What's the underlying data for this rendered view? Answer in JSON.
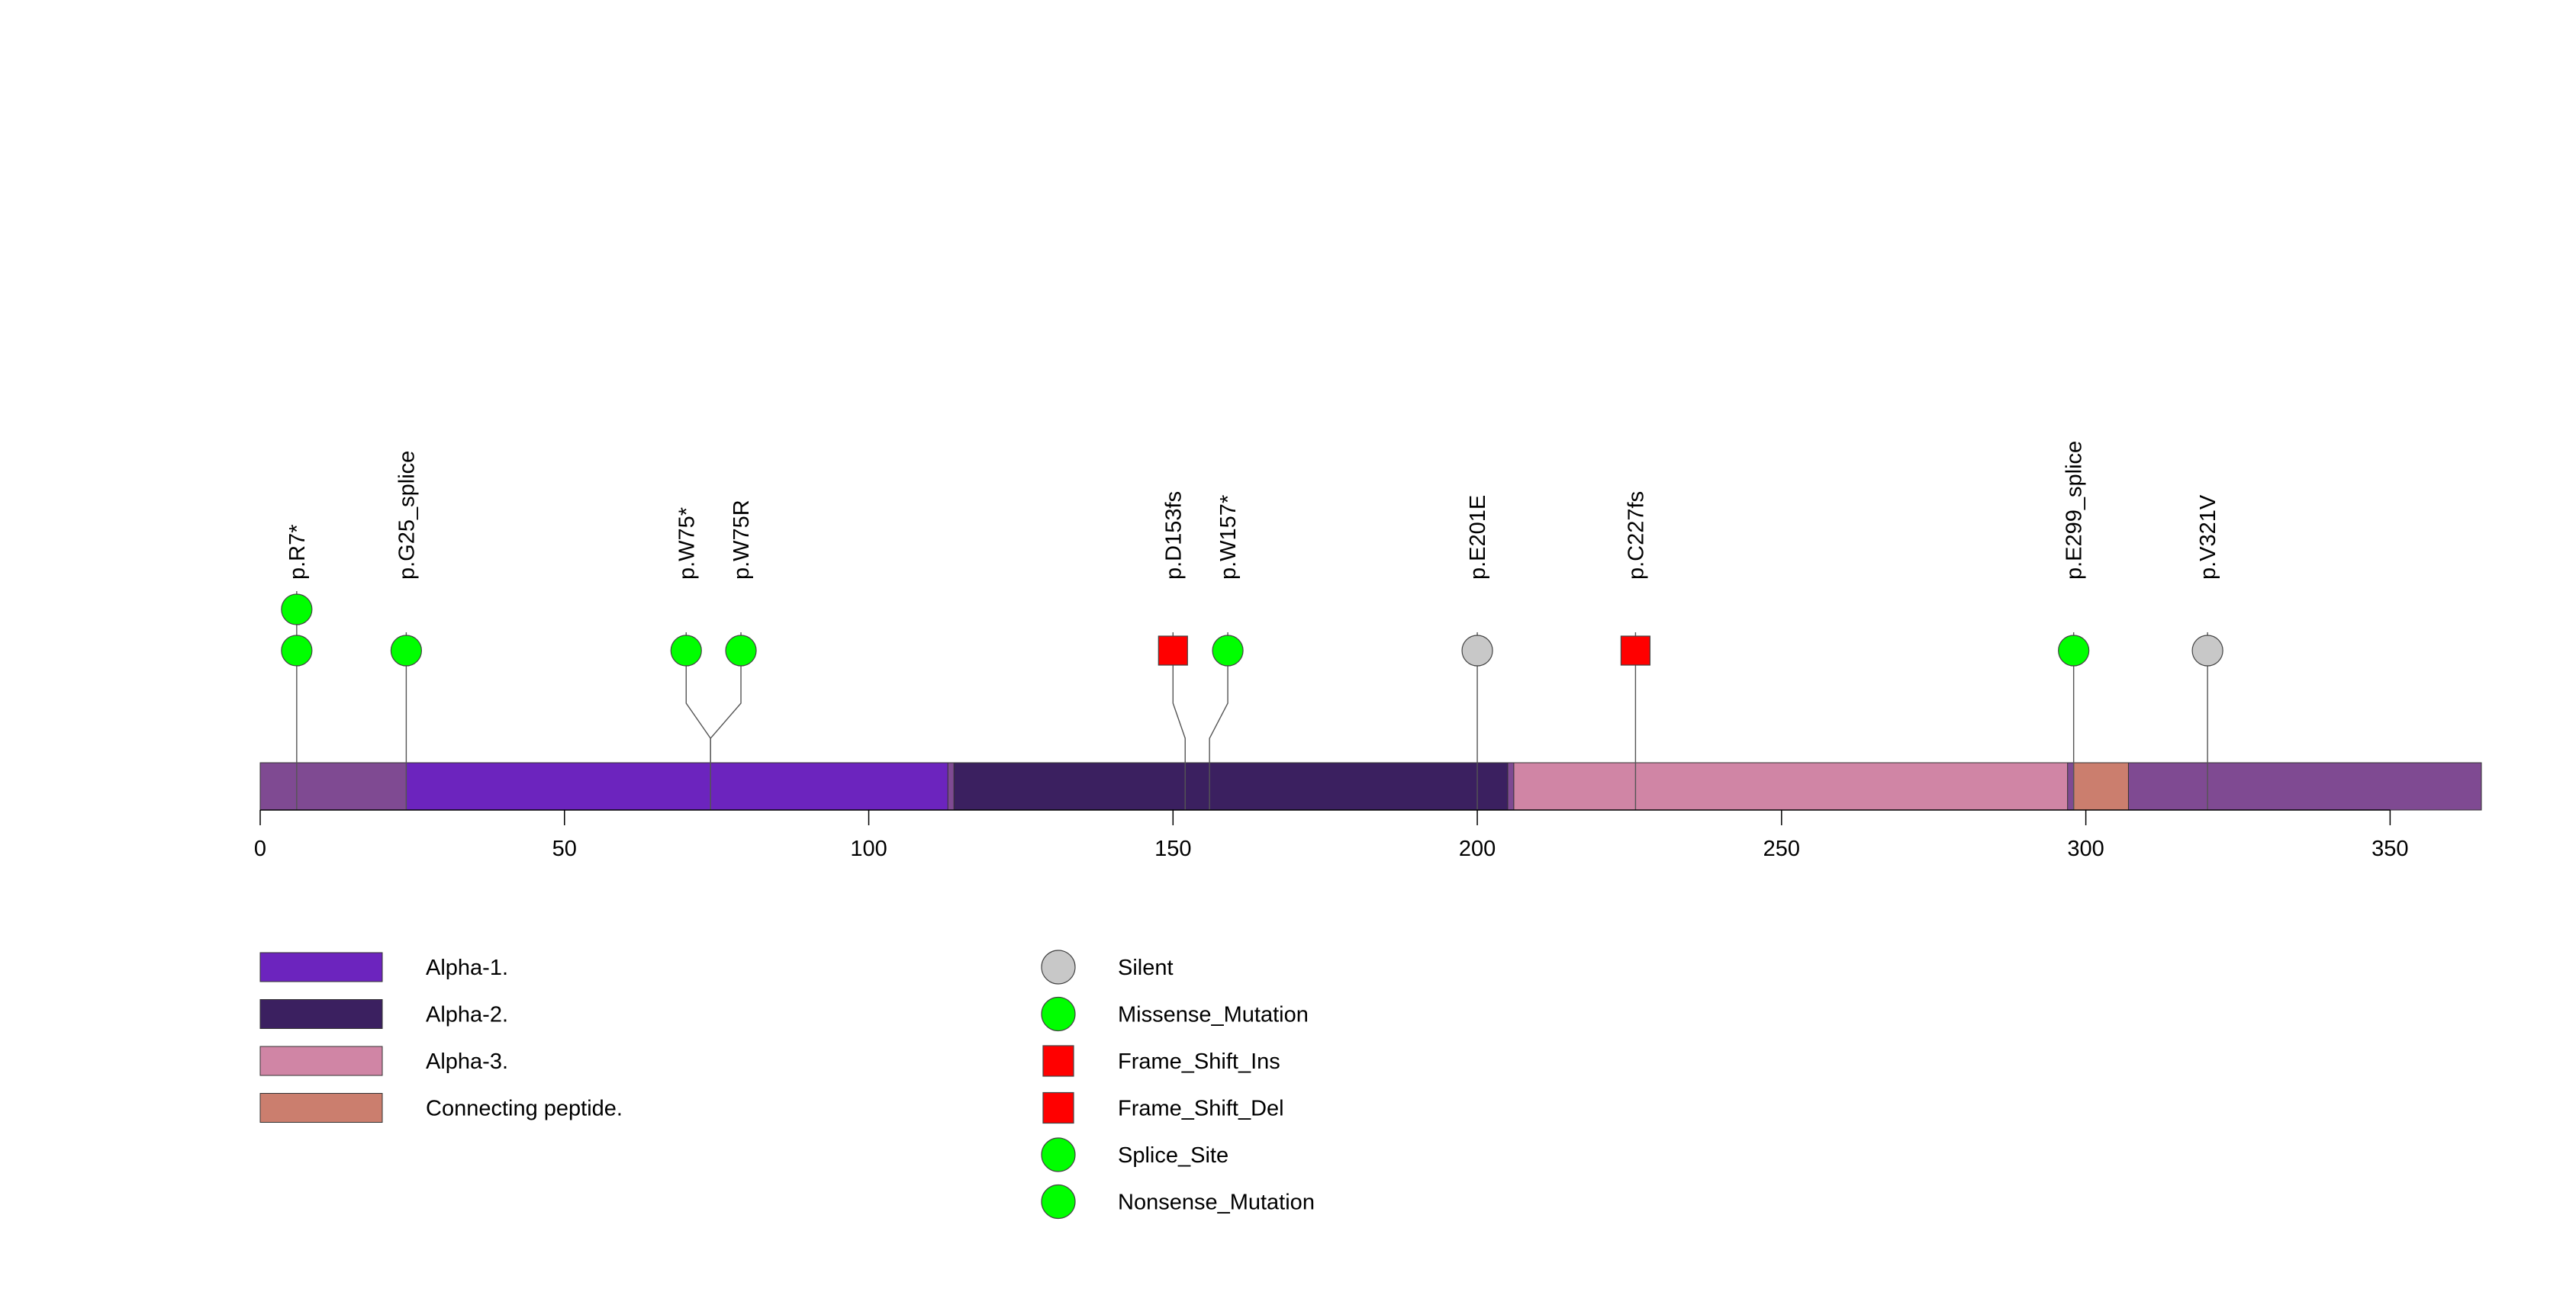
{
  "chart_data": {
    "type": "lollipop",
    "xlim": [
      0,
      365
    ],
    "ticks": [
      0,
      50,
      100,
      150,
      200,
      250,
      300,
      350
    ],
    "protein": {
      "length": 365,
      "backbone_color": "#7F4A92"
    },
    "domains": [
      {
        "name": "Alpha-1.",
        "start": 24,
        "end": 113,
        "color": "#6C24BE"
      },
      {
        "name": "Alpha-2.",
        "start": 114,
        "end": 205,
        "color": "#3B2060"
      },
      {
        "name": "Alpha-3.",
        "start": 206,
        "end": 297,
        "color": "#D085A5"
      },
      {
        "name": "Connecting peptide.",
        "start": 298,
        "end": 307,
        "color": "#CB7E6E"
      }
    ],
    "mutations": [
      {
        "label": "p.R7*",
        "position": 6,
        "display_position": 6,
        "count": 2,
        "type": "Nonsense_Mutation"
      },
      {
        "label": "p.G25_splice",
        "position": 24,
        "display_position": 24,
        "count": 1,
        "type": "Splice_Site"
      },
      {
        "label": "p.W75*",
        "position": 74,
        "display_position": 70,
        "count": 1,
        "type": "Nonsense_Mutation"
      },
      {
        "label": "p.W75R",
        "position": 74,
        "display_position": 79,
        "count": 1,
        "type": "Missense_Mutation"
      },
      {
        "label": "p.D153fs",
        "position": 152,
        "display_position": 150,
        "count": 1,
        "type": "Frame_Shift_Ins"
      },
      {
        "label": "p.W157*",
        "position": 156,
        "display_position": 159,
        "count": 1,
        "type": "Nonsense_Mutation"
      },
      {
        "label": "p.E201E",
        "position": 200,
        "display_position": 200,
        "count": 1,
        "type": "Silent"
      },
      {
        "label": "p.C227fs",
        "position": 226,
        "display_position": 226,
        "count": 1,
        "type": "Frame_Shift_Del"
      },
      {
        "label": "p.E299_splice",
        "position": 298,
        "display_position": 298,
        "count": 1,
        "type": "Splice_Site"
      },
      {
        "label": "p.V321V",
        "position": 320,
        "display_position": 320,
        "count": 1,
        "type": "Silent"
      }
    ],
    "mutation_types": [
      {
        "name": "Silent",
        "shape": "circle",
        "color": "#C8C8C8"
      },
      {
        "name": "Missense_Mutation",
        "shape": "circle",
        "color": "#00FF00"
      },
      {
        "name": "Frame_Shift_Ins",
        "shape": "square",
        "color": "#FF0000"
      },
      {
        "name": "Frame_Shift_Del",
        "shape": "square",
        "color": "#FF0000"
      },
      {
        "name": "Splice_Site",
        "shape": "circle",
        "color": "#00FF00"
      },
      {
        "name": "Nonsense_Mutation",
        "shape": "circle",
        "color": "#00FF00"
      }
    ]
  }
}
